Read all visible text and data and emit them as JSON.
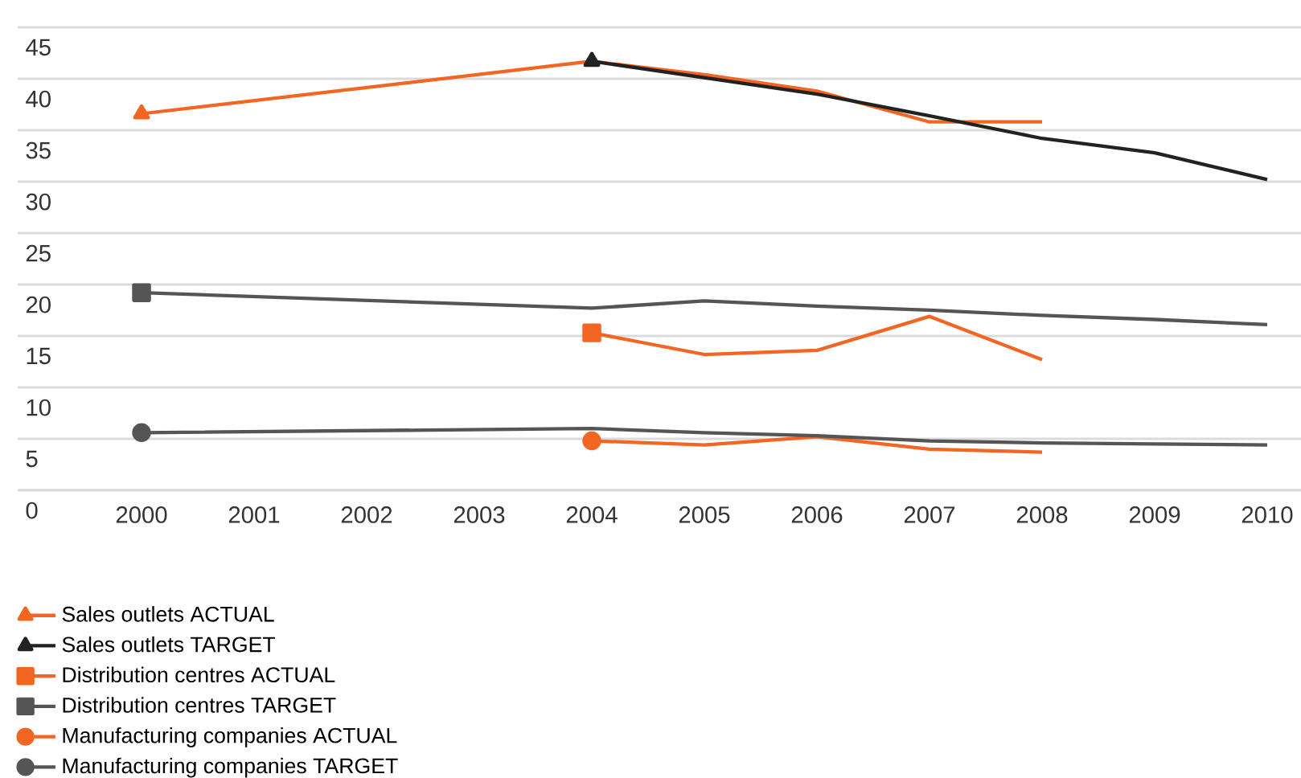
{
  "chart_data": {
    "type": "line",
    "xlim": [
      1998.9,
      2010.3
    ],
    "ylim": [
      0,
      45
    ],
    "xticks": [
      2000,
      2001,
      2002,
      2003,
      2004,
      2005,
      2006,
      2007,
      2008,
      2009,
      2010
    ],
    "yticks": [
      0,
      5,
      10,
      15,
      20,
      25,
      30,
      35,
      40,
      45
    ],
    "grid": "y",
    "legend": "bottom",
    "series": [
      {
        "color": "#f26522",
        "x": [
          2000,
          2004,
          2005,
          2006,
          2007,
          2008
        ],
        "values": [
          36.6,
          41.7,
          40.4,
          38.8,
          35.8,
          35.8
        ]
      },
      {
        "color": "#222222",
        "x": [
          2004,
          2005,
          2006,
          2007,
          2008,
          2009,
          2010
        ],
        "values": [
          41.7,
          40.1,
          38.5,
          36.4,
          34.2,
          32.8,
          30.2
        ]
      },
      {
        "color": "#f26522",
        "x": [
          2004,
          2005,
          2006,
          2007,
          2008
        ],
        "values": [
          15.3,
          13.2,
          13.6,
          16.9,
          12.7
        ]
      },
      {
        "color": "#555555",
        "x": [
          2000,
          2004,
          2005,
          2006,
          2007,
          2008,
          2009,
          2010
        ],
        "values": [
          19.2,
          17.7,
          18.4,
          17.9,
          17.5,
          17.0,
          16.6,
          16.1
        ]
      },
      {
        "color": "#f26522",
        "x": [
          2004,
          2005,
          2006,
          2007,
          2008
        ],
        "values": [
          4.8,
          4.4,
          5.2,
          4.0,
          3.7
        ]
      },
      {
        "color": "#555555",
        "x": [
          2000,
          2004,
          2005,
          2006,
          2007,
          2008,
          2009,
          2010
        ],
        "values": [
          5.6,
          6.0,
          5.6,
          5.3,
          4.8,
          4.6,
          4.5,
          4.4
        ]
      },
      {
        "type": "scatter",
        "name": "Sales outlets ACTUAL",
        "color": "#f26522",
        "marker": "triangle",
        "x": [
          2000
        ],
        "values": [
          36.6
        ]
      },
      {
        "type": "scatter",
        "name": "Sales outlets TARGET",
        "color": "#222222",
        "marker": "triangle",
        "x": [
          2004
        ],
        "values": [
          41.7
        ]
      },
      {
        "type": "scatter",
        "name": "Distribution centres ACTUAL",
        "color": "#f26522",
        "marker": "square",
        "x": [
          2004
        ],
        "values": [
          15.3
        ]
      },
      {
        "type": "scatter",
        "name": "Distribution centres TARGET",
        "color": "#555555",
        "marker": "square",
        "x": [
          2000
        ],
        "values": [
          19.2
        ]
      },
      {
        "type": "scatter",
        "name": "Manufacturing companies ACTUAL",
        "color": "#f26522",
        "marker": "circle",
        "x": [
          2004
        ],
        "values": [
          4.8
        ]
      },
      {
        "type": "scatter",
        "name": "Manufacturing companies TARGET",
        "color": "#555555",
        "marker": "circle",
        "x": [
          2000
        ],
        "values": [
          5.6
        ]
      }
    ]
  }
}
